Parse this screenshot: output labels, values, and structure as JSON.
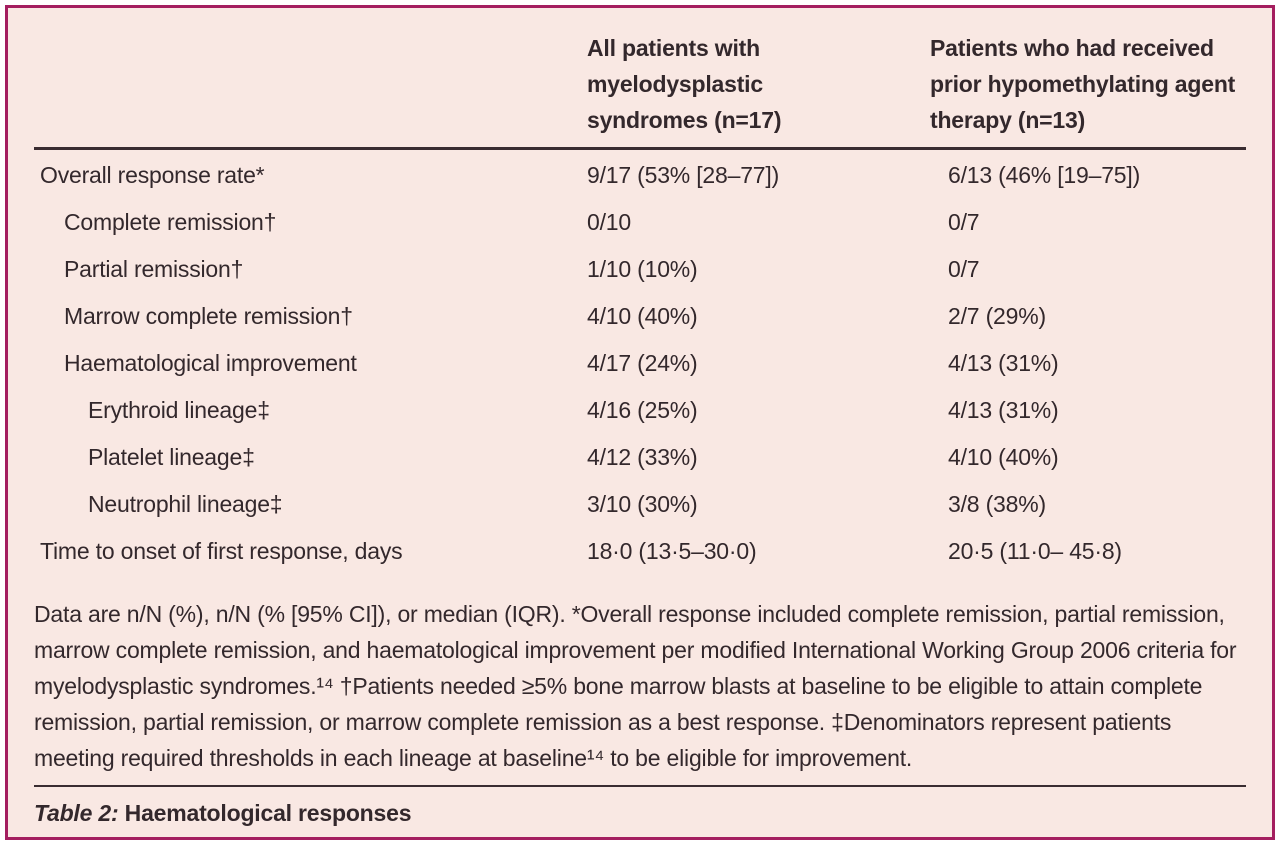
{
  "table": {
    "caption_label": "Table 2:",
    "caption_text": " Haematological responses",
    "columns": {
      "col2_header": "All patients with myelodysplastic syndromes (n=17)",
      "col3_header": "Patients who had received prior hypomethylating agent therapy (n=13)"
    },
    "rows": [
      {
        "label": "Overall response rate*",
        "indent": 0,
        "all_patients": "9/17 (53% [28–77])",
        "prior_hma": "6/13 (46% [19–75])"
      },
      {
        "label": "Complete remission†",
        "indent": 1,
        "all_patients": "0/10",
        "prior_hma": "0/7"
      },
      {
        "label": "Partial remission†",
        "indent": 1,
        "all_patients": "1/10 (10%)",
        "prior_hma": "0/7"
      },
      {
        "label": "Marrow complete remission†",
        "indent": 1,
        "all_patients": "4/10 (40%)",
        "prior_hma": "2/7 (29%)"
      },
      {
        "label": "Haematological improvement",
        "indent": 1,
        "all_patients": "4/17 (24%)",
        "prior_hma": "4/13 (31%)"
      },
      {
        "label": "Erythroid lineage‡",
        "indent": 2,
        "all_patients": "4/16 (25%)",
        "prior_hma": "4/13 (31%)"
      },
      {
        "label": "Platelet lineage‡",
        "indent": 2,
        "all_patients": "4/12 (33%)",
        "prior_hma": "4/10 (40%)"
      },
      {
        "label": "Neutrophil lineage‡",
        "indent": 2,
        "all_patients": "3/10 (30%)",
        "prior_hma": "3/8 (38%)"
      },
      {
        "label": "Time to onset of first response, days",
        "indent": 0,
        "all_patients": "18·0 (13·5–30·0)",
        "prior_hma": "20·5 (11·0– 45·8)"
      }
    ],
    "footnote": "Data are n/N (%), n/N (% [95% CI]), or median (IQR). *Overall response included complete remission, partial remission, marrow complete remission, and haematological improvement per modified International Working Group 2006 criteria for myelodysplastic syndromes.¹⁴ †Patients needed ≥5% bone marrow blasts at baseline to be eligible to attain complete remission, partial remission, or marrow complete remission as a best response. ‡Denominators represent patients meeting required thresholds in each lineage at baseline¹⁴ to be eligible for improvement."
  },
  "colors": {
    "panel_background": "#f9e8e3",
    "panel_border": "#a41e5f",
    "rule": "#3a2c31",
    "text": "#33282c"
  },
  "chart_data": {
    "type": "table",
    "title": "Table 2: Haematological responses",
    "columns": [
      "",
      "All patients with myelodysplastic syndromes (n=17)",
      "Patients who had received prior hypomethylating agent therapy (n=13)"
    ],
    "rows": [
      [
        "Overall response rate*",
        "9/17 (53% [28–77])",
        "6/13 (46% [19–75])"
      ],
      [
        "Complete remission†",
        "0/10",
        "0/7"
      ],
      [
        "Partial remission†",
        "1/10 (10%)",
        "0/7"
      ],
      [
        "Marrow complete remission†",
        "4/10 (40%)",
        "2/7 (29%)"
      ],
      [
        "Haematological improvement",
        "4/17 (24%)",
        "4/13 (31%)"
      ],
      [
        "Erythroid lineage‡",
        "4/16 (25%)",
        "4/13 (31%)"
      ],
      [
        "Platelet lineage‡",
        "4/12 (33%)",
        "4/10 (40%)"
      ],
      [
        "Neutrophil lineage‡",
        "3/10 (30%)",
        "3/8 (38%)"
      ],
      [
        "Time to onset of first response, days",
        "18·0 (13·5–30·0)",
        "20·5 (11·0– 45·8)"
      ]
    ]
  }
}
